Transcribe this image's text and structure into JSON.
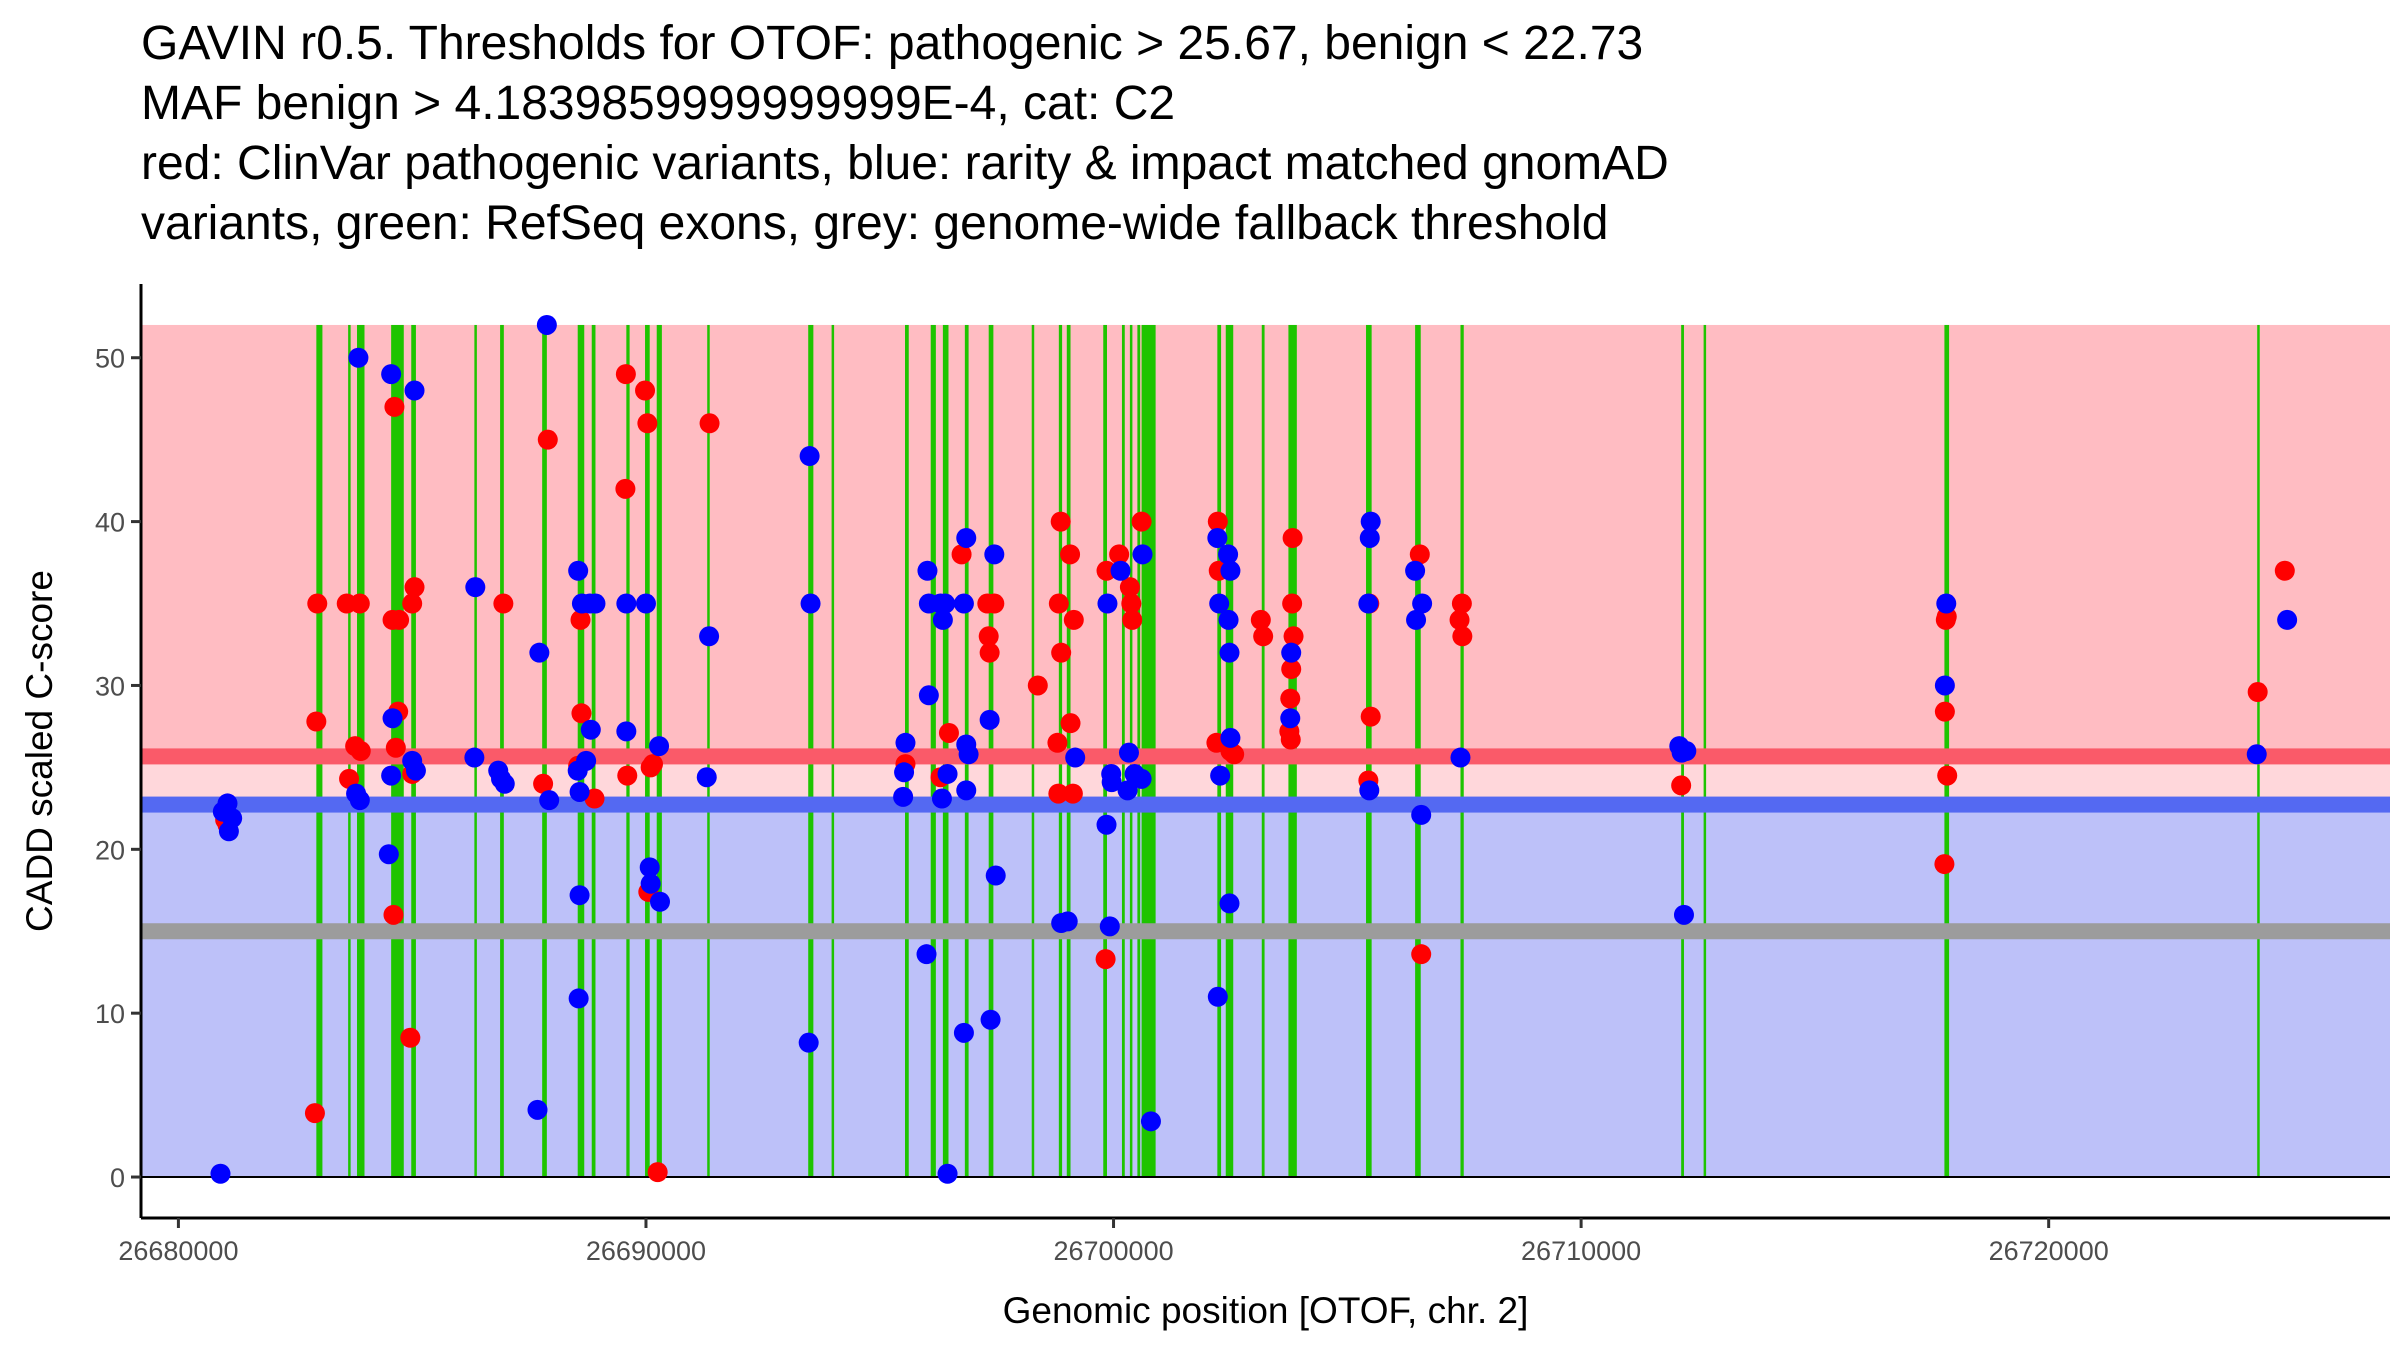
{
  "chart_data": {
    "type": "scatter",
    "title_lines": [
      "GAVIN r0.5. Thresholds for OTOF: pathogenic > 25.67, benign < 22.73",
      "MAF benign > 4.1839859999999999E-4, cat: C2",
      "red: ClinVar pathogenic variants, blue: rarity & impact matched gnomAD",
      "variants, green: RefSeq exons, grey: genome-wide fallback threshold"
    ],
    "xlabel": "Genomic position [OTOF, chr. 2]",
    "ylabel": "CADD scaled C-score",
    "xlim": [
      26679200,
      26727300
    ],
    "ylim": [
      -2.5,
      54.5
    ],
    "x_ticks": [
      26680000,
      26690000,
      26700000,
      26710000,
      26720000
    ],
    "x_tick_labels": [
      "26680000",
      "26690000",
      "26700000",
      "26710000",
      "26720000"
    ],
    "y_ticks": [
      0,
      10,
      20,
      30,
      40,
      50
    ],
    "y_tick_labels": [
      "0",
      "10",
      "20",
      "30",
      "40",
      "50"
    ],
    "grid": false,
    "thresholds": {
      "pathogenic": 25.67,
      "benign": 22.73,
      "genome_wide_fallback": 15,
      "max_score": 52
    },
    "regions": [
      {
        "name": "pathogenic-region",
        "from": 22.73,
        "to": 52,
        "color": "#ffbcc2"
      },
      {
        "name": "benign-region",
        "from": 0,
        "to": 22.73,
        "color": "#bdc1f9"
      },
      {
        "name": "grey-zone",
        "from": 22.73,
        "to": 25.67,
        "color": "#ffd7db"
      }
    ],
    "threshold_lines": [
      {
        "name": "pathogenic-threshold",
        "value": 25.67,
        "color": "#fa5a69"
      },
      {
        "name": "benign-threshold",
        "value": 22.73,
        "color": "#5469f2"
      },
      {
        "name": "fallback-threshold",
        "value": 15,
        "color": "#9c9c9c"
      }
    ],
    "colors": {
      "pathogenic": "#ff0000",
      "benign": "#0000ff",
      "exon": "#1ec400"
    },
    "exons": [
      [
        26682950,
        26683080
      ],
      [
        26683630,
        26683680
      ],
      [
        26683820,
        26683980
      ],
      [
        26684550,
        26684820
      ],
      [
        26684980,
        26685080
      ],
      [
        26686330,
        26686370
      ],
      [
        26686880,
        26686960
      ],
      [
        26687780,
        26687880
      ],
      [
        26688540,
        26688680
      ],
      [
        26688840,
        26688920
      ],
      [
        26689580,
        26689650
      ],
      [
        26689980,
        26690080
      ],
      [
        26690230,
        26690340
      ],
      [
        26691310,
        26691350
      ],
      [
        26693470,
        26693580
      ],
      [
        26693970,
        26694010
      ],
      [
        26695540,
        26695620
      ],
      [
        26696090,
        26696200
      ],
      [
        26696350,
        26696470
      ],
      [
        26696820,
        26696900
      ],
      [
        26697330,
        26697430
      ],
      [
        26698250,
        26698300
      ],
      [
        26698830,
        26698900
      ],
      [
        26699000,
        26699080
      ],
      [
        26699780,
        26699860
      ],
      [
        26700180,
        26700240
      ],
      [
        26700350,
        26700390
      ],
      [
        26700510,
        26700570
      ],
      [
        26700600,
        26700900
      ],
      [
        26702220,
        26702300
      ],
      [
        26702400,
        26702560
      ],
      [
        26703170,
        26703230
      ],
      [
        26703740,
        26703920
      ],
      [
        26705400,
        26705520
      ],
      [
        26706450,
        26706570
      ],
      [
        26707420,
        26707490
      ],
      [
        26712140,
        26712200
      ],
      [
        26712620,
        26712650
      ],
      [
        26717770,
        26717870
      ],
      [
        26724460,
        26724480
      ]
    ],
    "series": [
      {
        "name": "ClinVar pathogenic variants",
        "color": "#ff0000",
        "points": [
          [
            26681050,
            21.5
          ],
          [
            26681000,
            21.8
          ],
          [
            26682970,
            35.0
          ],
          [
            26682950,
            27.8
          ],
          [
            26682920,
            3.9
          ],
          [
            26683600,
            35.0
          ],
          [
            26683650,
            24.3
          ],
          [
            26683780,
            26.3
          ],
          [
            26683880,
            35.0
          ],
          [
            26683900,
            26.0
          ],
          [
            26684580,
            34.0
          ],
          [
            26684620,
            47.0
          ],
          [
            26684650,
            26.2
          ],
          [
            26684700,
            28.4
          ],
          [
            26684720,
            34.0
          ],
          [
            26684600,
            16.0
          ],
          [
            26685000,
            35.0
          ],
          [
            26685050,
            36.0
          ],
          [
            26685000,
            24.6
          ],
          [
            26684960,
            8.5
          ],
          [
            26686950,
            35.0
          ],
          [
            26687800,
            24.0
          ],
          [
            26687900,
            45.0
          ],
          [
            26688600,
            34.0
          ],
          [
            26688620,
            28.3
          ],
          [
            26688550,
            25.1
          ],
          [
            26688900,
            23.1
          ],
          [
            26689570,
            49.0
          ],
          [
            26689560,
            42.0
          ],
          [
            26689600,
            24.5
          ],
          [
            26689980,
            48.0
          ],
          [
            26690030,
            46.0
          ],
          [
            26690100,
            25.0
          ],
          [
            26690150,
            25.2
          ],
          [
            26690050,
            17.4
          ],
          [
            26690250,
            0.3
          ],
          [
            26691360,
            46.0
          ],
          [
            26695550,
            25.2
          ],
          [
            26696300,
            24.4
          ],
          [
            26696480,
            27.1
          ],
          [
            26696750,
            38.0
          ],
          [
            26697300,
            35.0
          ],
          [
            26697330,
            33.0
          ],
          [
            26697350,
            32.0
          ],
          [
            26697450,
            35.0
          ],
          [
            26698380,
            30.0
          ],
          [
            26698830,
            35.0
          ],
          [
            26698870,
            40.0
          ],
          [
            26698880,
            32.0
          ],
          [
            26698800,
            26.5
          ],
          [
            26698820,
            23.4
          ],
          [
            26699070,
            38.0
          ],
          [
            26699150,
            34.0
          ],
          [
            26699080,
            27.7
          ],
          [
            26699130,
            23.4
          ],
          [
            26699850,
            37.0
          ],
          [
            26699830,
            13.3
          ],
          [
            26700120,
            38.0
          ],
          [
            26700350,
            36.0
          ],
          [
            26700380,
            35.0
          ],
          [
            26700400,
            34.0
          ],
          [
            26700600,
            40.0
          ],
          [
            26702230,
            40.0
          ],
          [
            26702250,
            37.0
          ],
          [
            26702200,
            26.5
          ],
          [
            26702500,
            26.0
          ],
          [
            26702580,
            25.8
          ],
          [
            26703150,
            34.0
          ],
          [
            26703200,
            33.0
          ],
          [
            26703830,
            39.0
          ],
          [
            26703820,
            35.0
          ],
          [
            26703850,
            33.0
          ],
          [
            26703800,
            31.0
          ],
          [
            26703780,
            29.2
          ],
          [
            26703760,
            27.2
          ],
          [
            26703790,
            26.7
          ],
          [
            26705470,
            35.0
          ],
          [
            26705500,
            28.1
          ],
          [
            26705450,
            24.2
          ],
          [
            26706550,
            38.0
          ],
          [
            26706580,
            13.6
          ],
          [
            26707400,
            34.0
          ],
          [
            26707450,
            35.0
          ],
          [
            26707460,
            33.0
          ],
          [
            26712140,
            23.9
          ],
          [
            26717800,
            34.0
          ],
          [
            26717820,
            34.2
          ],
          [
            26717780,
            28.4
          ],
          [
            26717830,
            24.5
          ],
          [
            26717770,
            19.1
          ],
          [
            26724470,
            29.6
          ],
          [
            26725050,
            37.0
          ]
        ]
      },
      {
        "name": "rarity & impact matched gnomAD variants",
        "color": "#0000ff",
        "points": [
          [
            26681050,
            22.8
          ],
          [
            26680950,
            22.3
          ],
          [
            26681150,
            21.9
          ],
          [
            26681080,
            21.1
          ],
          [
            26680900,
            0.2
          ],
          [
            26683850,
            50.0
          ],
          [
            26683800,
            23.4
          ],
          [
            26683880,
            23.0
          ],
          [
            26684550,
            49.0
          ],
          [
            26684580,
            28.0
          ],
          [
            26684550,
            24.5
          ],
          [
            26684500,
            19.7
          ],
          [
            26685050,
            48.0
          ],
          [
            26685000,
            25.4
          ],
          [
            26685080,
            24.8
          ],
          [
            26686350,
            36.0
          ],
          [
            26686330,
            25.6
          ],
          [
            26686840,
            24.8
          ],
          [
            26686900,
            24.3
          ],
          [
            26686980,
            24.0
          ],
          [
            26687720,
            32.0
          ],
          [
            26687880,
            52.0
          ],
          [
            26687930,
            23.0
          ],
          [
            26687680,
            4.1
          ],
          [
            26688550,
            37.0
          ],
          [
            26688630,
            35.0
          ],
          [
            26688800,
            35.0
          ],
          [
            26688920,
            35.0
          ],
          [
            26688820,
            27.3
          ],
          [
            26688720,
            25.4
          ],
          [
            26688540,
            24.8
          ],
          [
            26688580,
            23.5
          ],
          [
            26688580,
            17.2
          ],
          [
            26688560,
            10.9
          ],
          [
            26689580,
            35.0
          ],
          [
            26689580,
            27.2
          ],
          [
            26690000,
            35.0
          ],
          [
            26690080,
            18.9
          ],
          [
            26690100,
            17.9
          ],
          [
            26690280,
            26.3
          ],
          [
            26690300,
            16.8
          ],
          [
            26691350,
            33.0
          ],
          [
            26691300,
            24.4
          ],
          [
            26693500,
            44.0
          ],
          [
            26693520,
            35.0
          ],
          [
            26693480,
            8.2
          ],
          [
            26695550,
            26.5
          ],
          [
            26695520,
            24.7
          ],
          [
            26695500,
            23.2
          ],
          [
            26696020,
            37.0
          ],
          [
            26696050,
            35.0
          ],
          [
            26696300,
            35.0
          ],
          [
            26696400,
            35.0
          ],
          [
            26696350,
            34.0
          ],
          [
            26696050,
            29.4
          ],
          [
            26696330,
            23.1
          ],
          [
            26696450,
            24.6
          ],
          [
            26696000,
            13.6
          ],
          [
            26696450,
            0.2
          ],
          [
            26696850,
            39.0
          ],
          [
            26696800,
            35.0
          ],
          [
            26696850,
            26.4
          ],
          [
            26696900,
            25.8
          ],
          [
            26696850,
            23.6
          ],
          [
            26696800,
            8.8
          ],
          [
            26697450,
            38.0
          ],
          [
            26697350,
            27.9
          ],
          [
            26697480,
            18.4
          ],
          [
            26697370,
            9.6
          ],
          [
            26698880,
            15.5
          ],
          [
            26699020,
            15.6
          ],
          [
            26699180,
            25.6
          ],
          [
            26699870,
            35.0
          ],
          [
            26699950,
            24.6
          ],
          [
            26699960,
            24.1
          ],
          [
            26699850,
            21.5
          ],
          [
            26699920,
            15.3
          ],
          [
            26700150,
            37.0
          ],
          [
            26700330,
            25.9
          ],
          [
            26700300,
            23.6
          ],
          [
            26700450,
            24.6
          ],
          [
            26700600,
            24.3
          ],
          [
            26700620,
            38.0
          ],
          [
            26700800,
            3.4
          ],
          [
            26702220,
            39.0
          ],
          [
            26702260,
            35.0
          ],
          [
            26702280,
            24.5
          ],
          [
            26702230,
            11.0
          ],
          [
            26702450,
            38.0
          ],
          [
            26702500,
            37.0
          ],
          [
            26702460,
            34.0
          ],
          [
            26702480,
            32.0
          ],
          [
            26702500,
            26.8
          ],
          [
            26702480,
            16.7
          ],
          [
            26703800,
            32.0
          ],
          [
            26703780,
            28.0
          ],
          [
            26705500,
            40.0
          ],
          [
            26705480,
            39.0
          ],
          [
            26705450,
            35.0
          ],
          [
            26705470,
            23.6
          ],
          [
            26706450,
            37.0
          ],
          [
            26706470,
            34.0
          ],
          [
            26706600,
            35.0
          ],
          [
            26706580,
            22.1
          ],
          [
            26707420,
            25.6
          ],
          [
            26712100,
            26.3
          ],
          [
            26712150,
            25.9
          ],
          [
            26712250,
            26.0
          ],
          [
            26712200,
            16.0
          ],
          [
            26717810,
            35.0
          ],
          [
            26717780,
            30.0
          ],
          [
            26724450,
            25.8
          ],
          [
            26725100,
            34.0
          ]
        ]
      }
    ]
  }
}
